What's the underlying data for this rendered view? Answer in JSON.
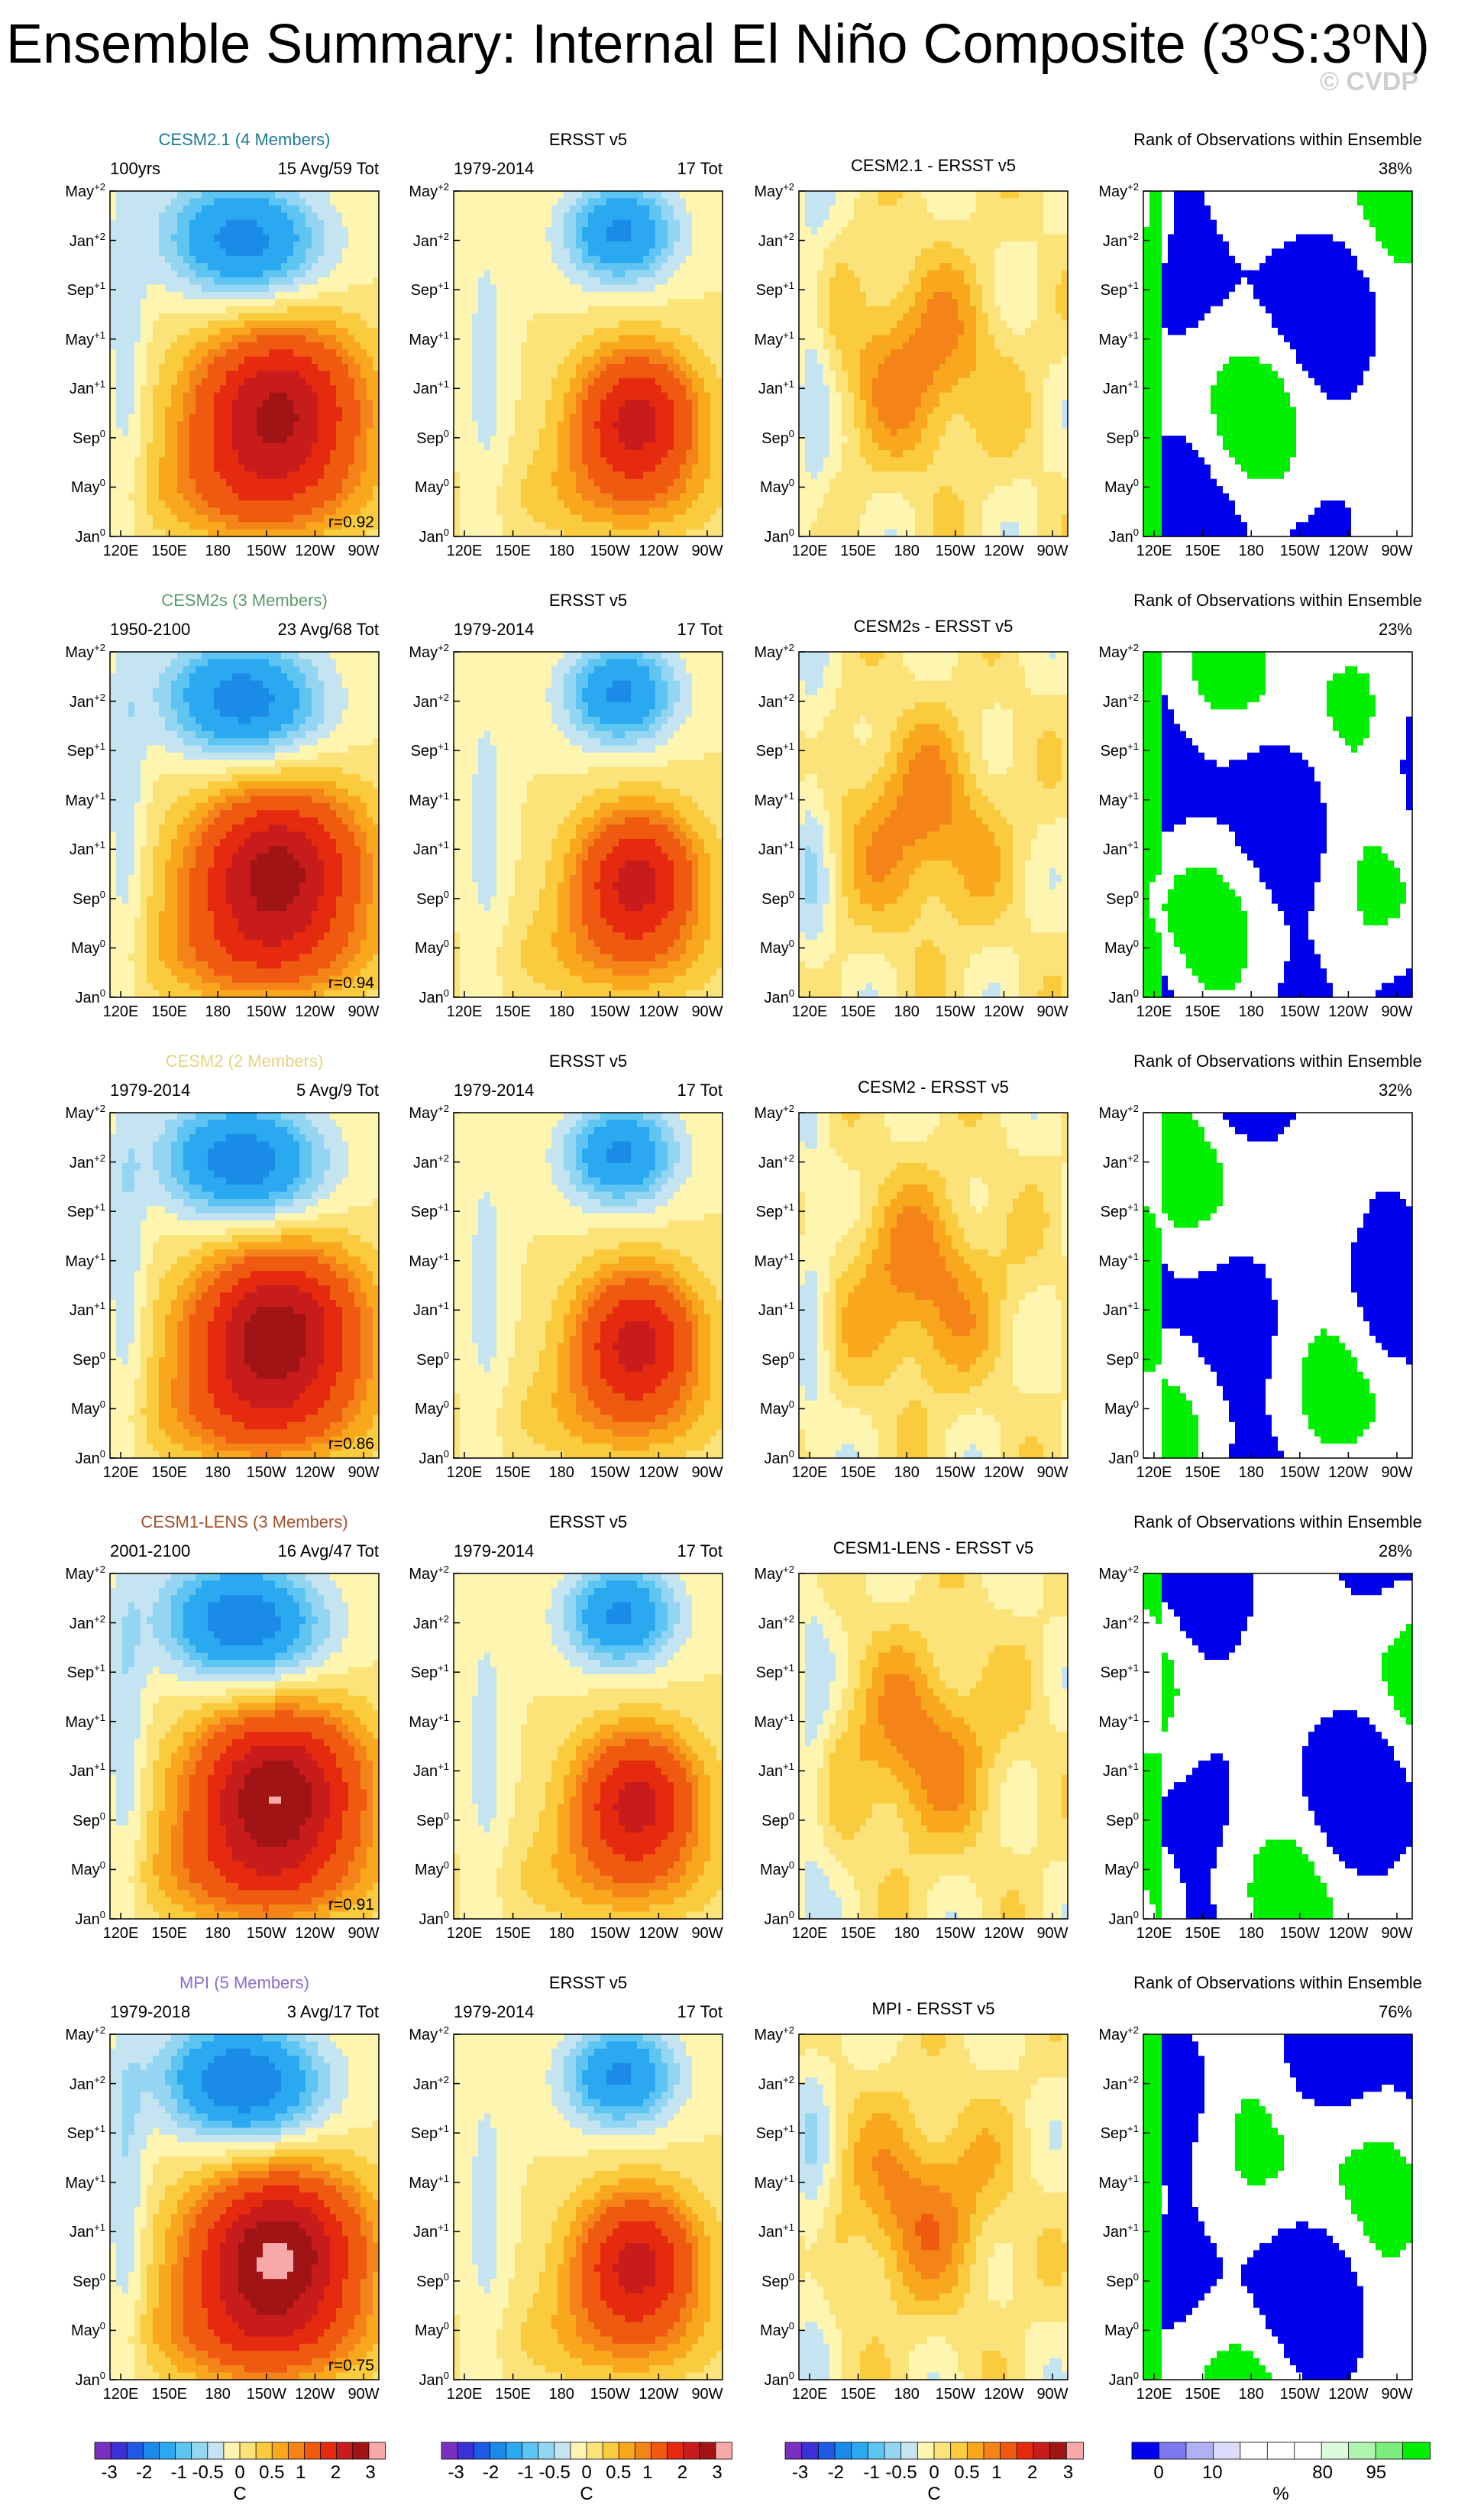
{
  "title": {
    "main": "Ensemble Summary: Internal El Niño Composite (3",
    "sup1": "o",
    "mid": "S:3",
    "sup2": "o",
    "end": "N)"
  },
  "watermark": "© CVDP",
  "column_headers": {
    "ersst": "ERSST v5",
    "rank": "Rank of Observations within Ensemble",
    "obs_period": "1979-2014",
    "obs_count": "17 Tot"
  },
  "rows": [
    {
      "model": "CESM2.1 (4 Members)",
      "model_color": "#1f7a96",
      "period": "100yrs",
      "counts": "15 Avg/59 Tot",
      "r": "r=0.92",
      "diff_title": "CESM2.1 - ERSST v5",
      "rank_pct": "38%"
    },
    {
      "model": "CESM2s (3 Members)",
      "model_color": "#5a9a6a",
      "period": "1950-2100",
      "counts": "23 Avg/68 Tot",
      "r": "r=0.94",
      "diff_title": "CESM2s - ERSST v5",
      "rank_pct": "23%"
    },
    {
      "model": "CESM2 (2 Members)",
      "model_color": "#e6d480",
      "period": "1979-2014",
      "counts": "5 Avg/9 Tot",
      "r": "r=0.86",
      "diff_title": "CESM2 - ERSST v5",
      "rank_pct": "32%"
    },
    {
      "model": "CESM1-LENS (3 Members)",
      "model_color": "#a0522d",
      "period": "2001-2100",
      "counts": "16 Avg/47 Tot",
      "r": "r=0.91",
      "diff_title": "CESM1-LENS - ERSST v5",
      "rank_pct": "28%"
    },
    {
      "model": "MPI (5 Members)",
      "model_color": "#8a6ccf",
      "period": "1979-2018",
      "counts": "3 Avg/17 Tot",
      "r": "r=0.75",
      "diff_title": "MPI - ERSST v5",
      "rank_pct": "76%"
    }
  ],
  "colorbars": {
    "sst_labels": [
      "-3",
      "-2",
      "-1",
      "-0.5",
      "0",
      "0.5",
      "1",
      "2",
      "3"
    ],
    "sst_unit": "C",
    "sst_colors": [
      "#7b2fbe",
      "#3b2fd6",
      "#1e5ae6",
      "#1a8ce8",
      "#2aa8f0",
      "#5ec4f2",
      "#94d6f2",
      "#c4e4f2",
      "#fdf5b0",
      "#fbe37a",
      "#fbcb3e",
      "#f9a81e",
      "#f58418",
      "#ef5a10",
      "#e52a10",
      "#c81c1c",
      "#a01416",
      "#f7a9a9"
    ],
    "rank_labels": [
      "0",
      "10",
      "80",
      "95"
    ],
    "rank_unit": "%",
    "rank_colors": [
      "#0000ee",
      "#7a7aee",
      "#b0b0f4",
      "#dcdcfa",
      "#ffffff",
      "#ffffff",
      "#ffffff",
      "#dcfadc",
      "#b0f4b0",
      "#7aee7a",
      "#00ee00"
    ]
  },
  "chart_data": [
    {
      "type": "heatmap",
      "panel": "model-composite",
      "xlabel": "",
      "ylabel": "",
      "x_tick_labels": [
        "120E",
        "150E",
        "180",
        "150W",
        "120W",
        "90W"
      ],
      "y_tick_labels": [
        "Jan0",
        "May0",
        "Sep0",
        "Jan+1",
        "May+1",
        "Sep+1",
        "Jan+2",
        "May+2"
      ],
      "rows": [
        "CESM2.1",
        "CESM2s",
        "CESM2",
        "CESM1-LENS",
        "MPI"
      ],
      "correlation_with_obs": [
        0.92,
        0.94,
        0.86,
        0.91,
        0.75
      ],
      "contour_levels": [
        -3,
        -2.5,
        -2,
        -1.5,
        -1,
        -0.75,
        -0.5,
        -0.25,
        0,
        0.25,
        0.5,
        0.75,
        1,
        1.5,
        2,
        2.5,
        3
      ],
      "units": "C"
    },
    {
      "type": "heatmap",
      "panel": "ERSST v5",
      "period": "1979-2014",
      "events": 17,
      "units": "C"
    },
    {
      "type": "heatmap",
      "panel": "model minus ERSST v5",
      "units": "C"
    },
    {
      "type": "heatmap",
      "panel": "Rank of Observations within Ensemble",
      "units": "%",
      "rank_percent": [
        38,
        23,
        32,
        28,
        76
      ],
      "levels": [
        0,
        10,
        80,
        95
      ]
    }
  ]
}
